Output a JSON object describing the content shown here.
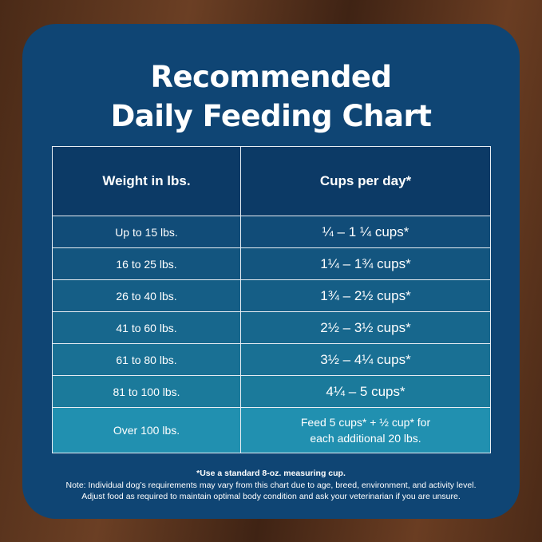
{
  "header": {
    "title_lines": [
      "Recommended",
      "Daily Feeding Chart"
    ]
  },
  "table": {
    "columns": [
      "Weight in lbs.",
      "Cups per day*"
    ],
    "rows": [
      [
        "Up to 15 lbs.",
        "¼ – 1 ¼ cups*"
      ],
      [
        "16 to 25 lbs.",
        "1¼ – 1¾  cups*"
      ],
      [
        "26 to 40 lbs.",
        "1¾ – 2½ cups*"
      ],
      [
        "41 to 60 lbs.",
        "2½ – 3½ cups*"
      ],
      [
        "61 to 80 lbs.",
        "3½ – 4¼ cups*"
      ],
      [
        "81 to 100 lbs.",
        "4¼ – 5 cups*"
      ],
      [
        "Over 100 lbs.",
        [
          "Feed 5 cups* + ½ cup* for",
          "each additional 20 lbs."
        ]
      ]
    ]
  },
  "footer": {
    "measure_note": "*Use a standard 8-oz. measuring cup.",
    "note_lines": [
      "Note: Individual dog’s requirements may vary from this chart due to age, breed, environment, and activity level.",
      "Adjust food as required to maintain optimal body condition and ask your veterinarian if you are unsure."
    ]
  }
}
